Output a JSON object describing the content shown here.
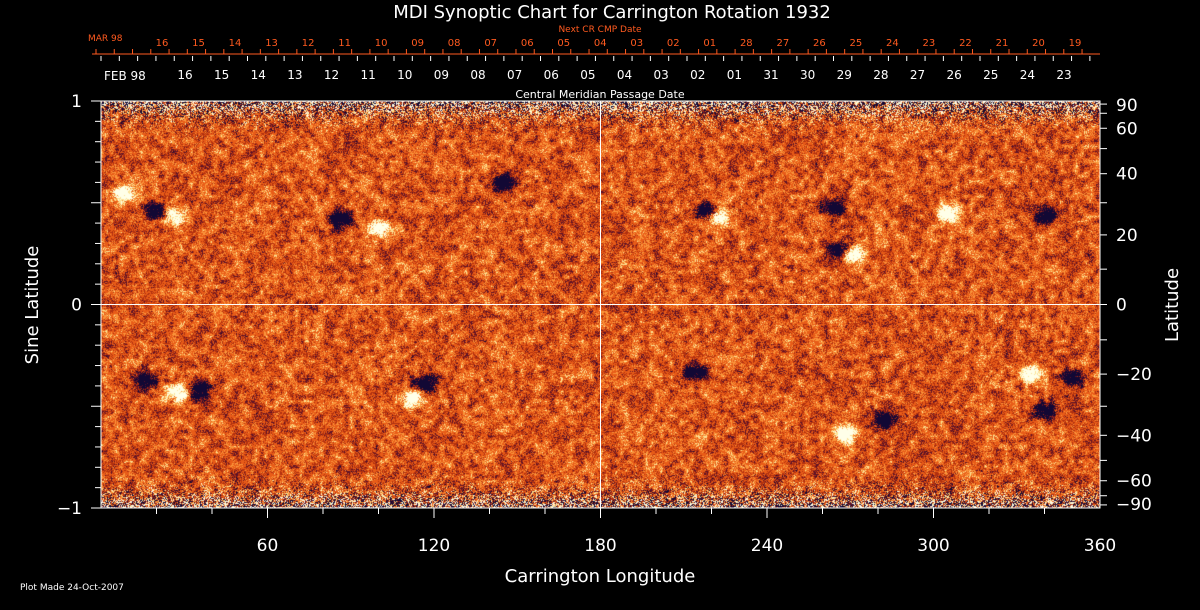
{
  "chart_data": {
    "type": "heatmap",
    "title": "MDI Synoptic Chart for Carrington Rotation 1932",
    "next_cr_label": "Next CR CMP Date",
    "cmp_label": "Central Meridian Passage Date",
    "xlabel": "Carrington Longitude",
    "ylabel_left": "Sine Latitude",
    "ylabel_right": "Latitude",
    "footer": "Plot Made 24-Oct-2007",
    "xlim": [
      0,
      360
    ],
    "ylim": [
      -1,
      1
    ],
    "x_ticks": [
      "60",
      "120",
      "180",
      "240",
      "300",
      "360"
    ],
    "left_ticks": [
      "1",
      "0",
      "−1"
    ],
    "right_ticks": [
      "90",
      "60",
      "40",
      "20",
      "0",
      "−20",
      "−40",
      "−60",
      "−90"
    ],
    "next_cr_dates": {
      "month_label": "MAR 98",
      "labels": [
        "16",
        "15",
        "14",
        "13",
        "12",
        "11",
        "10",
        "09",
        "08",
        "07",
        "06",
        "05",
        "04",
        "03",
        "02",
        "01",
        "28",
        "27",
        "26",
        "25",
        "24",
        "23",
        "22",
        "21",
        "20",
        "19"
      ]
    },
    "cmp_dates": {
      "month_label": "FEB 98",
      "labels": [
        "16",
        "15",
        "14",
        "13",
        "12",
        "11",
        "10",
        "09",
        "08",
        "07",
        "06",
        "05",
        "04",
        "03",
        "02",
        "01",
        "31",
        "30",
        "29",
        "28",
        "27",
        "26",
        "25",
        "24",
        "23"
      ]
    },
    "guide_lines": {
      "longitude": 180,
      "sine_latitude": 0
    },
    "active_regions": [
      {
        "lon": 8,
        "sinlat": 0.55,
        "polarity": "positive"
      },
      {
        "lon": 20,
        "sinlat": 0.46,
        "polarity": "negative"
      },
      {
        "lon": 26,
        "sinlat": 0.44,
        "polarity": "positive"
      },
      {
        "lon": 86,
        "sinlat": 0.42,
        "polarity": "negative"
      },
      {
        "lon": 100,
        "sinlat": 0.38,
        "polarity": "positive"
      },
      {
        "lon": 145,
        "sinlat": 0.6,
        "polarity": "negative"
      },
      {
        "lon": 218,
        "sinlat": 0.46,
        "polarity": "negative"
      },
      {
        "lon": 222,
        "sinlat": 0.43,
        "polarity": "positive"
      },
      {
        "lon": 264,
        "sinlat": 0.48,
        "polarity": "negative"
      },
      {
        "lon": 266,
        "sinlat": 0.27,
        "polarity": "negative"
      },
      {
        "lon": 271,
        "sinlat": 0.25,
        "polarity": "positive"
      },
      {
        "lon": 305,
        "sinlat": 0.45,
        "polarity": "positive"
      },
      {
        "lon": 340,
        "sinlat": 0.44,
        "polarity": "negative"
      },
      {
        "lon": 16,
        "sinlat": -0.37,
        "polarity": "negative"
      },
      {
        "lon": 28,
        "sinlat": -0.43,
        "polarity": "positive"
      },
      {
        "lon": 35,
        "sinlat": -0.42,
        "polarity": "negative"
      },
      {
        "lon": 112,
        "sinlat": -0.46,
        "polarity": "positive"
      },
      {
        "lon": 117,
        "sinlat": -0.39,
        "polarity": "negative"
      },
      {
        "lon": 214,
        "sinlat": -0.33,
        "polarity": "negative"
      },
      {
        "lon": 268,
        "sinlat": -0.64,
        "polarity": "positive"
      },
      {
        "lon": 282,
        "sinlat": -0.57,
        "polarity": "negative"
      },
      {
        "lon": 335,
        "sinlat": -0.34,
        "polarity": "positive"
      },
      {
        "lon": 350,
        "sinlat": -0.36,
        "polarity": "negative"
      },
      {
        "lon": 340,
        "sinlat": -0.52,
        "polarity": "negative"
      }
    ]
  }
}
